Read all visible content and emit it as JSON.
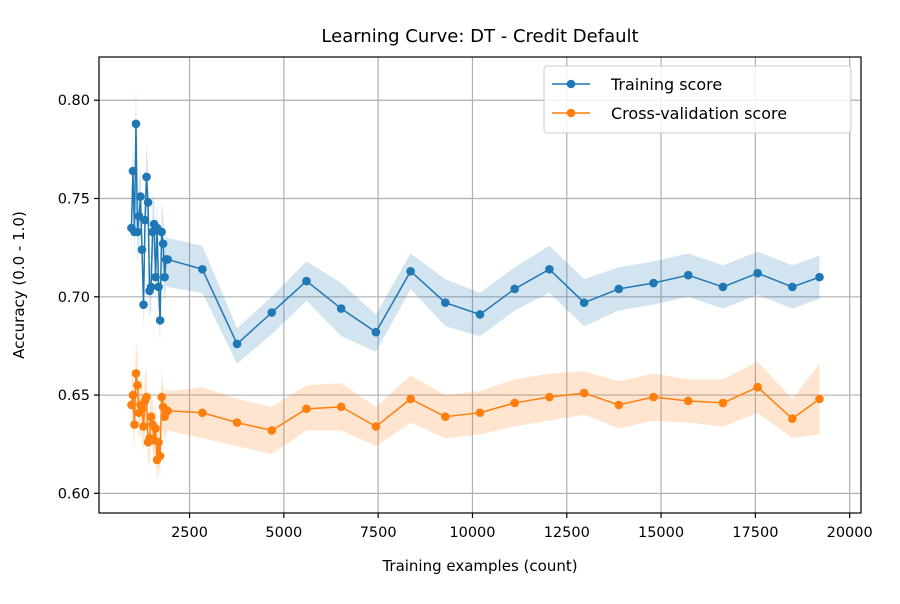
{
  "chart_data": {
    "type": "line",
    "title": "Learning Curve: DT - Credit Default",
    "xlabel": "Training examples (count)",
    "ylabel": "Accuracy (0.0 - 1.0)",
    "xlim": [
      100,
      20300
    ],
    "ylim": [
      0.59,
      0.822
    ],
    "xticks": [
      2500,
      5000,
      7500,
      10000,
      12500,
      15000,
      17500,
      20000
    ],
    "xtick_labels": [
      "2500",
      "5000",
      "7500",
      "10000",
      "12500",
      "15000",
      "17500",
      "20000"
    ],
    "yticks": [
      0.6,
      0.65,
      0.7,
      0.75,
      0.8
    ],
    "ytick_labels": [
      "0.60",
      "0.65",
      "0.70",
      "0.75",
      "0.80"
    ],
    "grid": true,
    "legend_position": "top-right",
    "x": [
      960,
      1000,
      1040,
      1080,
      1120,
      1160,
      1200,
      1240,
      1280,
      1320,
      1360,
      1400,
      1440,
      1480,
      1520,
      1560,
      1600,
      1640,
      1680,
      1720,
      1760,
      1800,
      1840,
      1880,
      1920,
      2840,
      3760,
      4680,
      5600,
      6520,
      7440,
      8360,
      9280,
      10200,
      11120,
      12040,
      12960,
      13880,
      14800,
      15720,
      16640,
      17560,
      18480,
      19200
    ],
    "series": [
      {
        "name": "Training score",
        "color": "#1f77b4",
        "values": [
          0.735,
          0.764,
          0.733,
          0.788,
          0.733,
          0.741,
          0.751,
          0.724,
          0.696,
          0.739,
          0.761,
          0.748,
          0.703,
          0.705,
          0.733,
          0.737,
          0.71,
          0.735,
          0.705,
          0.688,
          0.733,
          0.727,
          0.71,
          0.719,
          0.719,
          0.714,
          0.676,
          0.692,
          0.708,
          0.694,
          0.682,
          0.713,
          0.697,
          0.691,
          0.704,
          0.714,
          0.697,
          0.704,
          0.707,
          0.711,
          0.705,
          0.712,
          0.705,
          0.71
        ],
        "band_lower": [
          0.722,
          0.748,
          0.718,
          0.766,
          0.716,
          0.724,
          0.736,
          0.709,
          0.684,
          0.724,
          0.744,
          0.732,
          0.69,
          0.692,
          0.718,
          0.722,
          0.697,
          0.72,
          0.692,
          0.676,
          0.718,
          0.712,
          0.697,
          0.706,
          0.705,
          0.702,
          0.666,
          0.681,
          0.698,
          0.68,
          0.672,
          0.704,
          0.685,
          0.68,
          0.693,
          0.702,
          0.685,
          0.693,
          0.696,
          0.7,
          0.694,
          0.701,
          0.694,
          0.699
        ],
        "band_upper": [
          0.748,
          0.78,
          0.748,
          0.81,
          0.75,
          0.758,
          0.766,
          0.739,
          0.708,
          0.754,
          0.778,
          0.764,
          0.716,
          0.718,
          0.748,
          0.752,
          0.723,
          0.75,
          0.718,
          0.7,
          0.748,
          0.742,
          0.723,
          0.732,
          0.73,
          0.726,
          0.684,
          0.7,
          0.718,
          0.707,
          0.691,
          0.722,
          0.709,
          0.702,
          0.715,
          0.726,
          0.709,
          0.715,
          0.718,
          0.722,
          0.716,
          0.723,
          0.716,
          0.721
        ]
      },
      {
        "name": "Cross-validation score",
        "color": "#ff7f0e",
        "values": [
          0.645,
          0.65,
          0.635,
          0.661,
          0.655,
          0.641,
          0.645,
          0.643,
          0.634,
          0.647,
          0.649,
          0.626,
          0.628,
          0.639,
          0.635,
          0.627,
          0.633,
          0.617,
          0.626,
          0.619,
          0.649,
          0.644,
          0.639,
          0.642,
          0.642,
          0.641,
          0.636,
          0.632,
          0.643,
          0.644,
          0.634,
          0.648,
          0.639,
          0.641,
          0.646,
          0.649,
          0.651,
          0.645,
          0.649,
          0.647,
          0.646,
          0.654,
          0.638,
          0.648
        ],
        "band_lower": [
          0.632,
          0.636,
          0.622,
          0.645,
          0.64,
          0.628,
          0.631,
          0.629,
          0.621,
          0.633,
          0.635,
          0.613,
          0.616,
          0.626,
          0.622,
          0.614,
          0.62,
          0.605,
          0.614,
          0.607,
          0.636,
          0.632,
          0.627,
          0.63,
          0.632,
          0.628,
          0.624,
          0.62,
          0.632,
          0.632,
          0.624,
          0.636,
          0.628,
          0.63,
          0.634,
          0.637,
          0.64,
          0.633,
          0.637,
          0.636,
          0.634,
          0.641,
          0.628,
          0.63
        ],
        "band_upper": [
          0.658,
          0.664,
          0.648,
          0.677,
          0.67,
          0.654,
          0.659,
          0.657,
          0.647,
          0.661,
          0.663,
          0.639,
          0.64,
          0.652,
          0.648,
          0.64,
          0.646,
          0.629,
          0.638,
          0.631,
          0.662,
          0.656,
          0.651,
          0.654,
          0.652,
          0.654,
          0.648,
          0.644,
          0.655,
          0.656,
          0.644,
          0.66,
          0.65,
          0.652,
          0.658,
          0.661,
          0.662,
          0.657,
          0.661,
          0.658,
          0.658,
          0.667,
          0.648,
          0.666
        ]
      }
    ]
  }
}
